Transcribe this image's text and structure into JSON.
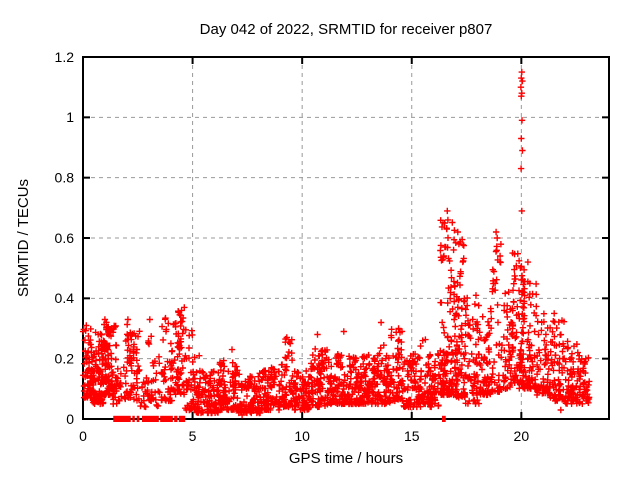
{
  "window": {
    "background": "#ffffff"
  },
  "chart_data": {
    "type": "scatter",
    "title": "Day 042 of 2022, SRMTID for receiver p807",
    "xlabel": "GPS time / hours",
    "ylabel": "SRMTID / TECUs",
    "xlim": [
      0,
      24
    ],
    "ylim": [
      0,
      1.2
    ],
    "xticks": [
      0,
      5,
      10,
      15,
      20
    ],
    "xticklabels": [
      "0",
      "5",
      "10",
      "15",
      "20"
    ],
    "yticks": [
      0,
      0.2,
      0.4,
      0.6,
      0.8,
      1,
      1.2
    ],
    "yticklabels": [
      "0",
      "0.2",
      "0.4",
      "0.6",
      "0.8",
      "1",
      "1.2"
    ],
    "grid": {
      "on": true,
      "style": "dashed",
      "color": "#999999"
    },
    "legend": "none",
    "marker": {
      "shape": "plus",
      "color": "#ff0000",
      "size": 3.2
    },
    "series_name": "SRMTID",
    "band_segments_x0_x1_ymin_ymax_n_bias": [
      [
        0.0,
        0.45,
        0.07,
        0.31,
        70
      ],
      [
        0.45,
        0.95,
        0.05,
        0.3,
        90
      ],
      [
        0.8,
        1.1,
        0.23,
        0.26,
        15,
        1.0
      ],
      [
        0.95,
        1.3,
        0.08,
        0.33,
        60
      ],
      [
        1.05,
        1.55,
        0.27,
        0.31,
        18,
        1.0
      ],
      [
        1.3,
        1.6,
        0.05,
        0.26,
        30
      ],
      [
        1.6,
        1.95,
        0.06,
        0.18,
        15
      ],
      [
        1.95,
        2.25,
        0.07,
        0.33,
        35
      ],
      [
        2.25,
        2.6,
        0.06,
        0.3,
        30
      ],
      [
        2.6,
        2.95,
        0.04,
        0.16,
        15
      ],
      [
        2.95,
        3.25,
        0.06,
        0.33,
        20
      ],
      [
        3.25,
        3.6,
        0.04,
        0.22,
        15
      ],
      [
        3.6,
        4.1,
        0.06,
        0.34,
        40
      ],
      [
        4.1,
        4.65,
        0.08,
        0.37,
        60
      ],
      [
        4.65,
        5.15,
        0.03,
        0.3,
        45
      ],
      [
        5.15,
        6.2,
        0.02,
        0.16,
        110
      ],
      [
        6.2,
        7.1,
        0.03,
        0.2,
        100
      ],
      [
        7.1,
        8.1,
        0.02,
        0.16,
        100
      ],
      [
        8.1,
        9.0,
        0.03,
        0.17,
        90
      ],
      [
        9.0,
        9.6,
        0.04,
        0.27,
        60
      ],
      [
        9.6,
        10.4,
        0.03,
        0.16,
        90
      ],
      [
        10.4,
        11.2,
        0.04,
        0.24,
        90
      ],
      [
        11.2,
        12.2,
        0.05,
        0.22,
        110
      ],
      [
        12.2,
        13.2,
        0.05,
        0.22,
        110
      ],
      [
        13.2,
        14.0,
        0.05,
        0.26,
        90
      ],
      [
        14.0,
        14.6,
        0.06,
        0.3,
        70
      ],
      [
        14.6,
        15.4,
        0.04,
        0.22,
        80
      ],
      [
        15.4,
        15.8,
        0.05,
        0.27,
        40
      ],
      [
        15.8,
        16.3,
        0.04,
        0.22,
        50
      ],
      [
        16.3,
        16.95,
        0.08,
        0.66,
        130,
        2.2
      ],
      [
        16.95,
        17.45,
        0.07,
        0.6,
        100,
        2.2
      ],
      [
        17.45,
        18.1,
        0.05,
        0.42,
        70
      ],
      [
        18.1,
        18.6,
        0.08,
        0.35,
        50
      ],
      [
        18.6,
        19.1,
        0.09,
        0.58,
        50,
        2.0
      ],
      [
        19.1,
        19.55,
        0.1,
        0.45,
        40
      ],
      [
        19.55,
        19.9,
        0.12,
        0.55,
        50,
        2.0
      ],
      [
        19.9,
        20.15,
        0.1,
        0.52,
        60,
        1.4
      ],
      [
        20.15,
        20.7,
        0.1,
        0.46,
        60,
        1.9
      ],
      [
        20.7,
        21.3,
        0.08,
        0.35,
        60
      ],
      [
        21.3,
        22.0,
        0.06,
        0.33,
        70
      ],
      [
        22.0,
        22.6,
        0.05,
        0.26,
        70
      ],
      [
        22.6,
        23.1,
        0.05,
        0.21,
        50
      ]
    ],
    "peak_points": [
      [
        20.02,
        1.15
      ],
      [
        20.0,
        1.13
      ],
      [
        20.05,
        1.12
      ],
      [
        19.98,
        1.1
      ],
      [
        20.02,
        1.08
      ],
      [
        20.0,
        1.07
      ],
      [
        20.03,
        0.99
      ],
      [
        20.0,
        0.93
      ],
      [
        20.05,
        0.89
      ],
      [
        19.99,
        0.83
      ],
      [
        20.02,
        0.69
      ],
      [
        16.62,
        0.69
      ],
      [
        16.65,
        0.66
      ],
      [
        16.6,
        0.63
      ],
      [
        17.1,
        0.62
      ],
      [
        18.85,
        0.62
      ],
      [
        18.9,
        0.6
      ],
      [
        17.15,
        0.58
      ],
      [
        16.55,
        0.57
      ],
      [
        19.6,
        0.55
      ],
      [
        20.3,
        0.52
      ],
      [
        4.62,
        0.37
      ],
      [
        4.5,
        0.36
      ],
      [
        2.05,
        0.33
      ],
      [
        3.05,
        0.33
      ],
      [
        1.0,
        0.33
      ],
      [
        13.6,
        0.32
      ],
      [
        0.15,
        0.31
      ],
      [
        14.4,
        0.3
      ],
      [
        11.9,
        0.29
      ],
      [
        10.7,
        0.28
      ],
      [
        9.3,
        0.27
      ],
      [
        15.5,
        0.26
      ],
      [
        21.5,
        0.35
      ],
      [
        6.8,
        0.23
      ],
      [
        5.3,
        0.21
      ],
      [
        8.6,
        0.17
      ],
      [
        7.26,
        0.013
      ],
      [
        21.8,
        0.03
      ],
      [
        4.85,
        0.03
      ]
    ],
    "zero_flag_segments_hours": [
      [
        1.38,
        2.18
      ],
      [
        2.25,
        2.36
      ],
      [
        2.45,
        2.57
      ],
      [
        2.69,
        3.46
      ],
      [
        3.52,
        4.1
      ],
      [
        4.16,
        4.31
      ],
      [
        4.37,
        4.4
      ],
      [
        4.46,
        4.49
      ],
      [
        4.55,
        4.58
      ],
      [
        16.38,
        16.55
      ]
    ],
    "axis_color": "#000000",
    "background_color": "#ffffff"
  }
}
